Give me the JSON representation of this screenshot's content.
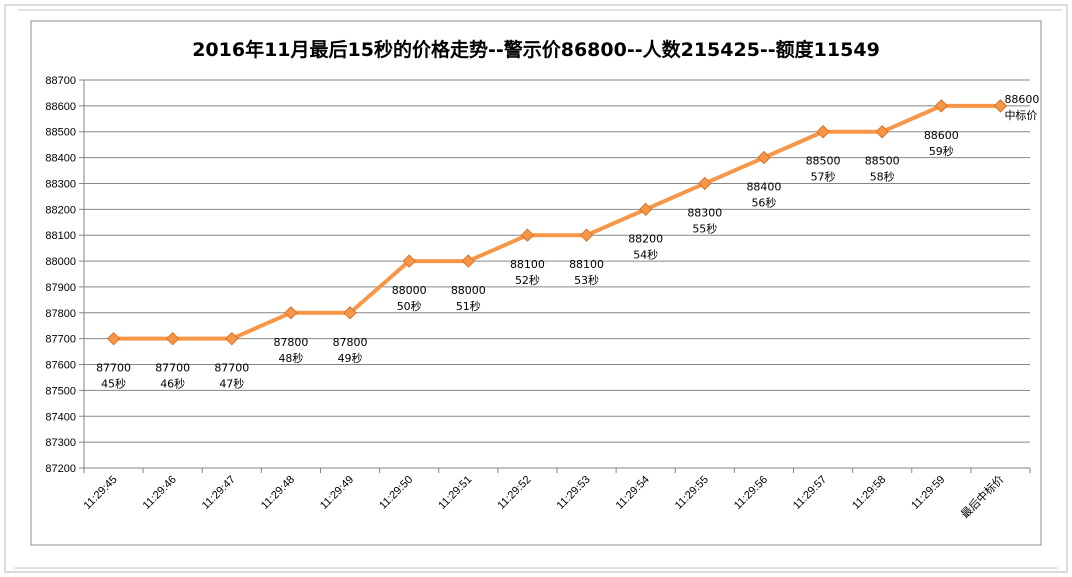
{
  "chart_data": {
    "type": "line",
    "title": "2016年11月最后15秒的价格走势--警示价86800--人数215425--额度11549",
    "xlabel": "",
    "ylabel": "",
    "categories": [
      "11:29:45",
      "11:29:46",
      "11:29:47",
      "11:29:48",
      "11:29:49",
      "11:29:50",
      "11:29:51",
      "11:29:52",
      "11:29:53",
      "11:29:54",
      "11:29:55",
      "11:29:56",
      "11:29:57",
      "11:29:58",
      "11:29:59",
      "最后中标价"
    ],
    "series": [
      {
        "values": [
          87700,
          87700,
          87700,
          87800,
          87800,
          88000,
          88000,
          88100,
          88100,
          88200,
          88300,
          88400,
          88500,
          88500,
          88600,
          88600
        ],
        "color": "#f79646",
        "marker_color": "#f79646"
      }
    ],
    "data_labels": [
      [
        "87700",
        "45秒"
      ],
      [
        "87700",
        "46秒"
      ],
      [
        "87700",
        "47秒"
      ],
      [
        "87800",
        "48秒"
      ],
      [
        "87800",
        "49秒"
      ],
      [
        "88000",
        "50秒"
      ],
      [
        "88000",
        "51秒"
      ],
      [
        "88100",
        "52秒"
      ],
      [
        "88100",
        "53秒"
      ],
      [
        "88200",
        "54秒"
      ],
      [
        "88300",
        "55秒"
      ],
      [
        "88400",
        "56秒"
      ],
      [
        "88500",
        "57秒"
      ],
      [
        "88500",
        "58秒"
      ],
      [
        "88600",
        "59秒"
      ],
      [
        "88600",
        "中标价"
      ]
    ],
    "ylim": [
      87200,
      88700
    ],
    "ytick_step": 100,
    "grid": true,
    "legend": "none",
    "gridline_color": "#868686"
  }
}
